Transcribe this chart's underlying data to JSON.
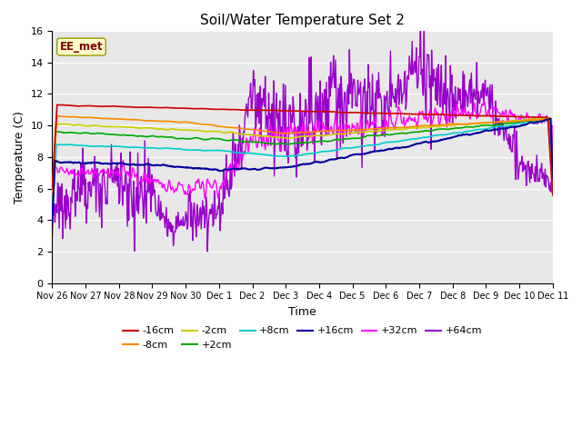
{
  "title": "Soil/Water Temperature Set 2",
  "xlabel": "Time",
  "ylabel": "Temperature (C)",
  "ylim": [
    0,
    16
  ],
  "yticks": [
    0,
    2,
    4,
    6,
    8,
    10,
    12,
    14,
    16
  ],
  "annotation_text": "EE_met",
  "bg_color": "#e8e8e8",
  "fig_bg": "#ffffff",
  "series_colors": {
    "-16cm": "#cc0000",
    "-8cm": "#ff8800",
    "-2cm": "#cccc00",
    "+2cm": "#00aa00",
    "+8cm": "#00cccc",
    "+16cm": "#000099",
    "+32cm": "#ff00ff",
    "+64cm": "#9900cc"
  },
  "tick_labels": [
    "Nov 26",
    "Nov 27",
    "Nov 28",
    "Nov 29",
    "Nov 30",
    "Dec 1",
    "Dec 2",
    "Dec 3",
    "Dec 4",
    "Dec 5",
    "Dec 6",
    "Dec 7",
    "Dec 8",
    "Dec 9",
    "Dec 10",
    "Dec 11"
  ],
  "n_points": 720
}
